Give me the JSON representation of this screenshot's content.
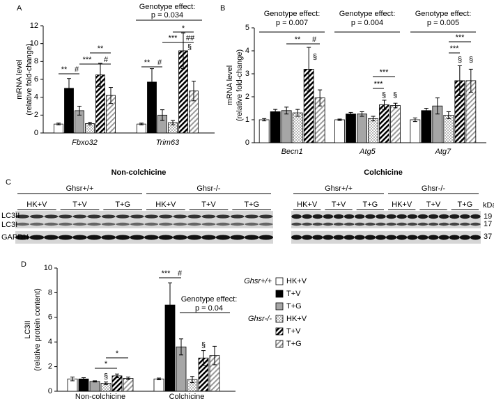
{
  "chart_data": [
    {
      "type": "bar",
      "panel_label": "A",
      "y_label": [
        "mRNA level",
        "(relative fold-change)"
      ],
      "categories": [
        "Fbxo32",
        "Trim63"
      ],
      "ylim": [
        0,
        12
      ],
      "yticks": [
        0,
        2,
        4,
        6,
        8,
        10,
        12
      ],
      "series": [
        {
          "color": "#ffffff",
          "pattern": "none",
          "values": [
            1.0,
            1.0
          ],
          "errors": [
            0.1,
            0.1
          ]
        },
        {
          "color": "#000000",
          "pattern": "none",
          "values": [
            5.0,
            5.7
          ],
          "errors": [
            1.1,
            1.5
          ]
        },
        {
          "color": "#a6a6a6",
          "pattern": "none",
          "values": [
            2.5,
            2.0
          ],
          "errors": [
            0.5,
            0.6
          ]
        },
        {
          "color": "#ffffff",
          "pattern": "dots",
          "values": [
            1.05,
            1.15
          ],
          "errors": [
            0.15,
            0.25
          ]
        },
        {
          "color": "#000000",
          "pattern": "hatch",
          "values": [
            6.5,
            9.2
          ],
          "errors": [
            1.3,
            2.0
          ]
        },
        {
          "color": "#a6a6a6",
          "pattern": "hatch-light",
          "values": [
            4.2,
            4.7
          ],
          "errors": [
            0.9,
            1.1
          ]
        }
      ],
      "annotations": [
        "**",
        "#",
        "**",
        "***",
        "#",
        "**",
        "#",
        "Genotype effect:",
        "p = 0.034",
        "*",
        "***",
        "##",
        "§"
      ]
    },
    {
      "type": "bar",
      "panel_label": "B",
      "y_label": [
        "mRNA level",
        "(relative fold-change)"
      ],
      "categories": [
        "Becn1",
        "Atg5",
        "Atg7"
      ],
      "ylim": [
        0,
        5
      ],
      "yticks": [
        0,
        1,
        2,
        3,
        4,
        5
      ],
      "series": [
        {
          "color": "#ffffff",
          "pattern": "none",
          "values": [
            1.0,
            1.0,
            1.0
          ],
          "errors": [
            0.05,
            0.03,
            0.08
          ]
        },
        {
          "color": "#000000",
          "pattern": "none",
          "values": [
            1.35,
            1.25,
            1.4
          ],
          "errors": [
            0.1,
            0.07,
            0.1
          ]
        },
        {
          "color": "#a6a6a6",
          "pattern": "none",
          "values": [
            1.4,
            1.25,
            1.6
          ],
          "errors": [
            0.15,
            0.1,
            0.35
          ]
        },
        {
          "color": "#ffffff",
          "pattern": "dots",
          "values": [
            1.3,
            1.05,
            1.2
          ],
          "errors": [
            0.15,
            0.1,
            0.15
          ]
        },
        {
          "color": "#000000",
          "pattern": "hatch",
          "values": [
            3.2,
            1.65,
            2.7
          ],
          "errors": [
            0.95,
            0.2,
            0.65
          ]
        },
        {
          "color": "#a6a6a6",
          "pattern": "hatch-light",
          "values": [
            1.95,
            1.62,
            2.7
          ],
          "errors": [
            0.35,
            0.1,
            0.5
          ]
        }
      ],
      "annotations": [
        "Genotype effect:",
        "p = 0.007",
        "Genotype effect:",
        "p = 0.004",
        "Genotype effect:",
        "p = 0.005",
        "**",
        "#",
        "§",
        "***",
        "***",
        "§",
        "§",
        "***",
        "***",
        "§",
        "§"
      ]
    },
    {
      "type": "bar",
      "panel_label": "D",
      "y_label": [
        "LC3II",
        "(relative protein content)"
      ],
      "categories": [
        "Non-colchicine",
        "Colchicine"
      ],
      "ylim": [
        0,
        10
      ],
      "yticks": [
        0,
        2,
        4,
        6,
        8,
        10
      ],
      "legend_groups": [
        "Ghsr+/+",
        "Ghsr-/-"
      ],
      "series": [
        {
          "name": "HK+V",
          "color": "#ffffff",
          "pattern": "none",
          "values": [
            1.0,
            1.0
          ],
          "errors": [
            0.15,
            0.07
          ]
        },
        {
          "name": "T+V",
          "color": "#000000",
          "pattern": "none",
          "values": [
            1.0,
            7.0
          ],
          "errors": [
            0.1,
            1.8
          ]
        },
        {
          "name": "T+G",
          "color": "#a6a6a6",
          "pattern": "none",
          "values": [
            0.8,
            3.6
          ],
          "errors": [
            0.05,
            0.65
          ]
        },
        {
          "name": "HK+V",
          "color": "#ffffff",
          "pattern": "dots",
          "values": [
            0.65,
            0.95
          ],
          "errors": [
            0.1,
            0.25
          ]
        },
        {
          "name": "T+V",
          "color": "#000000",
          "pattern": "hatch",
          "values": [
            1.25,
            2.7
          ],
          "errors": [
            0.15,
            0.6
          ]
        },
        {
          "name": "T+G",
          "color": "#a6a6a6",
          "pattern": "hatch-light",
          "values": [
            1.05,
            2.9
          ],
          "errors": [
            0.1,
            0.75
          ]
        }
      ],
      "annotations": [
        "***",
        "#",
        "Genotype effect:",
        "p = 0.04",
        "§",
        "*",
        "*",
        "§"
      ]
    }
  ],
  "blot": {
    "panel_label": "C",
    "conditions": [
      "Non-colchicine",
      "Colchicine"
    ],
    "genotypes": [
      "Ghsr+/+",
      "Ghsr-/-",
      "Ghsr+/+",
      "Ghsr-/-"
    ],
    "lanes": [
      "HK+V",
      "T+V",
      "T+G",
      "HK+V",
      "T+V",
      "T+G",
      "HK+V",
      "T+V",
      "T+G",
      "HK+V",
      "T+V",
      "T+G"
    ],
    "bands": [
      "LC3II",
      "LC3I",
      "GAPDH"
    ],
    "kda_title": "kDa",
    "kda": [
      19,
      17,
      37
    ]
  }
}
